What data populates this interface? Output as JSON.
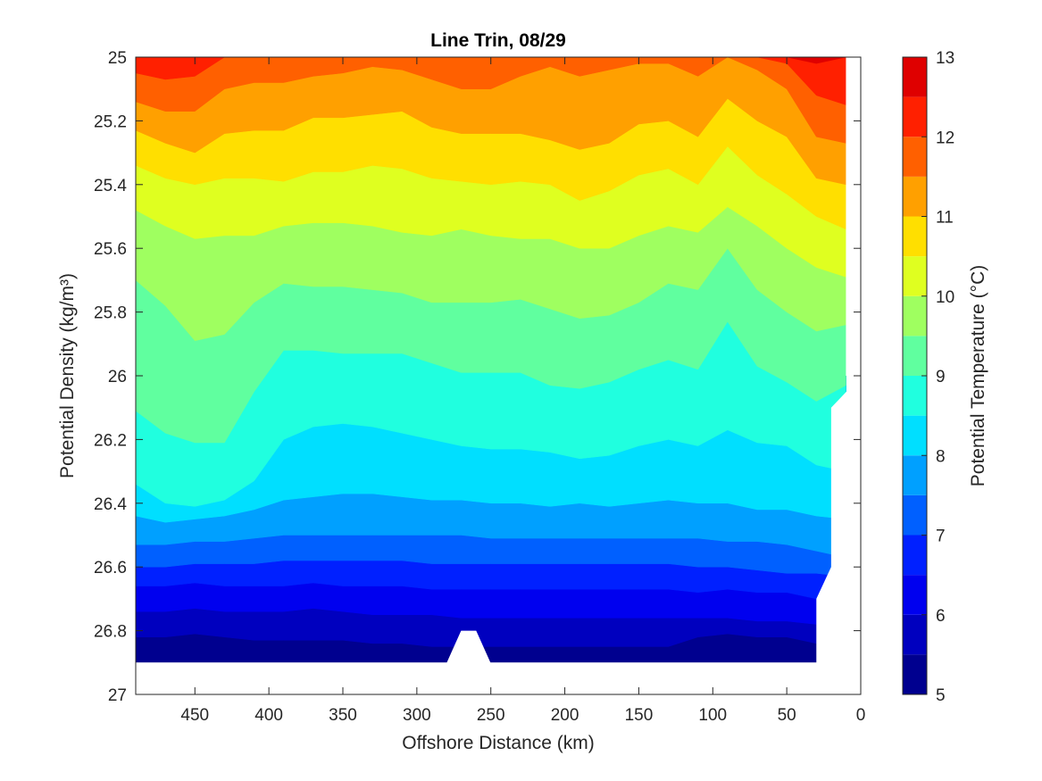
{
  "chart_data": {
    "type": "heatmap",
    "subtype": "filled-contour",
    "title": "Line Trin, 08/29",
    "xlabel": "Offshore Distance (km)",
    "ylabel": "Potential Density (kg/m³)",
    "colorbar_label": "Potential Temperature (°C)",
    "x_reversed": true,
    "y_reversed": true,
    "xlim": [
      0,
      490
    ],
    "ylim": [
      25,
      27
    ],
    "xticks": [
      450,
      400,
      350,
      300,
      250,
      200,
      150,
      100,
      50,
      0
    ],
    "yticks": [
      25,
      25.2,
      25.4,
      25.6,
      25.8,
      26,
      26.2,
      26.4,
      26.6,
      26.8,
      27
    ],
    "ytick_labels": [
      "25",
      "25.2",
      "25.4",
      "25.6",
      "25.8",
      "26",
      "26.2",
      "26.4",
      "26.6",
      "26.8",
      "27"
    ],
    "colorbar_ticks": [
      5,
      6,
      7,
      8,
      9,
      10,
      11,
      12,
      13
    ],
    "levels": [
      5,
      5.5,
      6,
      6.5,
      7,
      7.5,
      8,
      8.5,
      9,
      9.5,
      10,
      10.5,
      11,
      11.5,
      12,
      12.5,
      13
    ],
    "level_colors": [
      "#00008f",
      "#0000bf",
      "#0000ef",
      "#0020ff",
      "#0060ff",
      "#00a0ff",
      "#00dfff",
      "#20ffdf",
      "#60ff9f",
      "#9fff60",
      "#dfff20",
      "#ffdf00",
      "#ffa000",
      "#ff6000",
      "#ff2000",
      "#df0000",
      "#9f0000"
    ],
    "data_extent": {
      "x_min": 10,
      "x_max": 490,
      "y_min": 25,
      "y_max": 26.9
    },
    "data_gaps": [
      {
        "description": "missing data near 265 km",
        "x": [
          250,
          280
        ],
        "y_top": 26.8
      },
      {
        "description": "no data at shallow stations",
        "x_max": 30
      }
    ],
    "x_nodes": [
      490,
      470,
      450,
      430,
      410,
      390,
      370,
      350,
      330,
      310,
      290,
      270,
      250,
      230,
      210,
      190,
      170,
      150,
      130,
      110,
      90,
      70,
      50,
      30,
      10
    ],
    "isopycnal_boundaries": [
      {
        "level": 12.5,
        "y": [
          25.0,
          25.0,
          25.0,
          25.0,
          25.0,
          25.0,
          25.0,
          25.0,
          25.0,
          25.0,
          25.0,
          25.0,
          25.0,
          25.0,
          25.0,
          25.0,
          25.0,
          25.0,
          25.0,
          25.0,
          25.0,
          25.0,
          25.0,
          25.02,
          25.0
        ]
      },
      {
        "level": 12.0,
        "y": [
          25.05,
          25.07,
          25.06,
          25.0,
          25.0,
          25.0,
          25.0,
          25.0,
          25.0,
          25.0,
          25.0,
          25.0,
          25.0,
          25.0,
          25.0,
          25.0,
          25.0,
          25.0,
          25.0,
          25.0,
          25.0,
          25.0,
          25.02,
          25.12,
          25.15
        ]
      },
      {
        "level": 11.5,
        "y": [
          25.14,
          25.17,
          25.17,
          25.1,
          25.08,
          25.08,
          25.06,
          25.05,
          25.03,
          25.04,
          25.07,
          25.1,
          25.1,
          25.06,
          25.03,
          25.06,
          25.04,
          25.02,
          25.02,
          25.06,
          25.0,
          25.04,
          25.1,
          25.25,
          25.27
        ]
      },
      {
        "level": 11.0,
        "y": [
          25.23,
          25.27,
          25.3,
          25.24,
          25.23,
          25.23,
          25.19,
          25.19,
          25.18,
          25.17,
          25.22,
          25.24,
          25.24,
          25.24,
          25.26,
          25.29,
          25.27,
          25.21,
          25.2,
          25.25,
          25.13,
          25.2,
          25.25,
          25.38,
          25.4
        ]
      },
      {
        "level": 10.5,
        "y": [
          25.34,
          25.38,
          25.4,
          25.38,
          25.38,
          25.39,
          25.36,
          25.36,
          25.34,
          25.35,
          25.38,
          25.39,
          25.4,
          25.39,
          25.4,
          25.45,
          25.42,
          25.37,
          25.35,
          25.4,
          25.28,
          25.37,
          25.43,
          25.5,
          25.54
        ]
      },
      {
        "level": 10.0,
        "y": [
          25.48,
          25.53,
          25.57,
          25.56,
          25.56,
          25.53,
          25.52,
          25.52,
          25.53,
          25.55,
          25.56,
          25.54,
          25.56,
          25.57,
          25.57,
          25.6,
          25.6,
          25.56,
          25.53,
          25.55,
          25.47,
          25.53,
          25.6,
          25.66,
          25.69
        ]
      },
      {
        "level": 9.5,
        "y": [
          25.7,
          25.78,
          25.89,
          25.87,
          25.77,
          25.71,
          25.72,
          25.72,
          25.73,
          25.74,
          25.77,
          25.77,
          25.77,
          25.76,
          25.79,
          25.82,
          25.81,
          25.77,
          25.71,
          25.73,
          25.6,
          25.73,
          25.8,
          25.86,
          25.84
        ]
      },
      {
        "level": 9.0,
        "y": [
          26.11,
          26.18,
          26.21,
          26.21,
          26.05,
          25.92,
          25.92,
          25.93,
          25.93,
          25.93,
          25.96,
          25.99,
          25.99,
          25.99,
          26.03,
          26.04,
          26.02,
          25.98,
          25.95,
          25.98,
          25.83,
          25.97,
          26.02,
          26.08,
          26.03
        ]
      },
      {
        "level": 8.5,
        "y": [
          26.34,
          26.4,
          26.41,
          26.39,
          26.33,
          26.2,
          26.16,
          26.15,
          26.16,
          26.18,
          26.2,
          26.22,
          26.23,
          26.23,
          26.24,
          26.26,
          26.25,
          26.22,
          26.2,
          26.22,
          26.17,
          26.21,
          26.22,
          26.28,
          26.3
        ]
      },
      {
        "level": 8.0,
        "y": [
          26.44,
          26.46,
          26.45,
          26.44,
          26.42,
          26.39,
          26.38,
          26.37,
          26.37,
          26.38,
          26.39,
          26.39,
          26.4,
          26.4,
          26.41,
          26.4,
          26.41,
          26.4,
          26.39,
          26.4,
          26.4,
          26.42,
          26.42,
          26.44,
          26.45
        ]
      },
      {
        "level": 7.5,
        "y": [
          26.53,
          26.53,
          26.52,
          26.52,
          26.51,
          26.5,
          26.5,
          26.5,
          26.5,
          26.5,
          26.5,
          26.5,
          26.51,
          26.51,
          26.51,
          26.51,
          26.51,
          26.51,
          26.51,
          26.51,
          26.52,
          26.52,
          26.53,
          26.55,
          26.57
        ]
      },
      {
        "level": 7.0,
        "y": [
          26.6,
          26.6,
          26.59,
          26.59,
          26.59,
          26.58,
          26.58,
          26.58,
          26.58,
          26.58,
          26.59,
          26.59,
          26.59,
          26.59,
          26.59,
          26.59,
          26.59,
          26.59,
          26.59,
          26.6,
          26.6,
          26.61,
          26.62,
          26.62,
          26.63
        ]
      },
      {
        "level": 6.5,
        "y": [
          26.66,
          26.66,
          26.65,
          26.66,
          26.66,
          26.66,
          26.65,
          26.66,
          26.66,
          26.66,
          26.67,
          26.67,
          26.67,
          26.67,
          26.67,
          26.67,
          26.67,
          26.67,
          26.67,
          26.68,
          26.67,
          26.68,
          26.68,
          26.7,
          26.7
        ]
      },
      {
        "level": 6.0,
        "y": [
          26.74,
          26.74,
          26.73,
          26.74,
          26.74,
          26.74,
          26.73,
          26.74,
          26.75,
          26.75,
          26.75,
          26.76,
          26.76,
          26.76,
          26.76,
          26.76,
          26.76,
          26.76,
          26.76,
          26.76,
          26.76,
          26.77,
          26.77,
          26.78,
          26.78
        ]
      },
      {
        "level": 5.5,
        "y": [
          26.82,
          26.82,
          26.81,
          26.82,
          26.83,
          26.83,
          26.83,
          26.83,
          26.84,
          26.84,
          26.85,
          26.85,
          26.85,
          26.85,
          26.85,
          26.85,
          26.85,
          26.85,
          26.85,
          26.82,
          26.81,
          26.82,
          26.82,
          26.84,
          26.84
        ]
      }
    ]
  }
}
